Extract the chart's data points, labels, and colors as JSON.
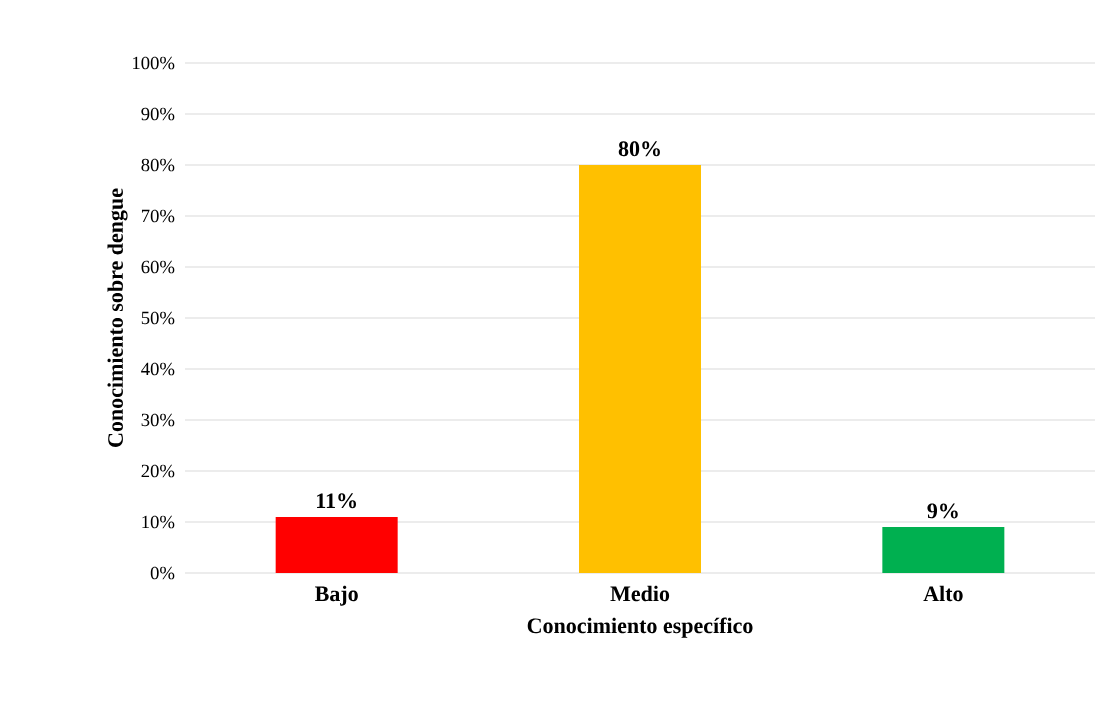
{
  "chart_data": {
    "type": "bar",
    "xlabel": "Conocimiento específico",
    "ylabel": "Conocimiento sobre dengue",
    "categories": [
      "Bajo",
      "Medio",
      "Alto"
    ],
    "values": [
      11,
      80,
      9
    ],
    "colors": [
      "#ff0000",
      "#ffc000",
      "#00b050"
    ],
    "value_labels": [
      "11%",
      "80%",
      "9%"
    ],
    "ylim": [
      0,
      100
    ],
    "yticks": [
      {
        "value": 0,
        "label": "0%"
      },
      {
        "value": 10,
        "label": "10%"
      },
      {
        "value": 20,
        "label": "20%"
      },
      {
        "value": 30,
        "label": "30%"
      },
      {
        "value": 40,
        "label": "40%"
      },
      {
        "value": 50,
        "label": "50%"
      },
      {
        "value": 60,
        "label": "60%"
      },
      {
        "value": 70,
        "label": "70%"
      },
      {
        "value": 80,
        "label": "80%"
      },
      {
        "value": 90,
        "label": "90%"
      },
      {
        "value": 100,
        "label": "100%"
      }
    ],
    "grid": "y"
  }
}
